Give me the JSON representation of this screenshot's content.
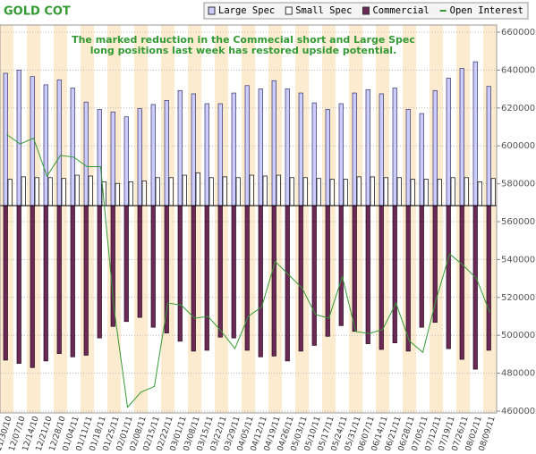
{
  "chart_data": {
    "type": "bar",
    "title": "GOLD COT",
    "annotation": [
      "The marked reduction in the Commecial short and Large Spec",
      "long positions last week has restored upside potential."
    ],
    "categories": [
      "11/30/10",
      "12/07/10",
      "12/14/10",
      "12/21/10",
      "12/28/10",
      "01/04/11",
      "01/11/11",
      "01/18/11",
      "01/25/11",
      "02/01/11",
      "02/08/11",
      "02/15/11",
      "02/22/11",
      "03/01/11",
      "03/08/11",
      "03/15/11",
      "03/22/11",
      "03/29/11",
      "04/05/11",
      "04/12/11",
      "04/19/11",
      "04/26/11",
      "05/03/11",
      "05/10/11",
      "05/17/11",
      "05/24/11",
      "05/31/11",
      "06/07/11",
      "06/14/11",
      "06/21/11",
      "06/28/11",
      "07/05/11",
      "07/12/11",
      "07/19/11",
      "07/26/11",
      "08/02/11",
      "08/09/11"
    ],
    "ylim": [
      -250000,
      211000
    ],
    "y2lim": [
      460000,
      660000
    ],
    "y2ticks": [
      460000,
      480000,
      500000,
      520000,
      540000,
      560000,
      580000,
      600000,
      620000,
      640000,
      660000
    ],
    "grid": true,
    "series": [
      {
        "name": "Large Spec",
        "type": "bar",
        "color": "#ccccff",
        "values": [
          161000,
          165000,
          157000,
          147000,
          153000,
          143000,
          126000,
          117000,
          114000,
          108000,
          118000,
          123000,
          128000,
          140000,
          136000,
          124000,
          124000,
          137000,
          146000,
          142000,
          152000,
          142000,
          137000,
          125000,
          117000,
          124000,
          137000,
          141000,
          136000,
          143000,
          117000,
          112000,
          140000,
          155000,
          167000,
          175000,
          145000
        ]
      },
      {
        "name": "Small Spec",
        "type": "bar",
        "color": "#ffffff",
        "values": [
          32000,
          35000,
          34000,
          34000,
          33000,
          37000,
          36000,
          29000,
          27000,
          29000,
          30000,
          34000,
          34000,
          37000,
          40000,
          34000,
          35000,
          34000,
          37000,
          36000,
          37000,
          34000,
          34000,
          33000,
          32000,
          32000,
          35000,
          35000,
          34000,
          34000,
          32000,
          32000,
          32000,
          34000,
          34000,
          29000,
          33000
        ]
      },
      {
        "name": "Commercial",
        "type": "bar",
        "color": "#6b2a56",
        "values": [
          -188000,
          -192000,
          -197000,
          -189000,
          -180000,
          -184000,
          -182000,
          -161000,
          -147000,
          -141000,
          -136000,
          -148000,
          -155000,
          -165000,
          -177000,
          -176000,
          -160000,
          -161000,
          -176000,
          -184000,
          -183000,
          -189000,
          -177000,
          -170000,
          -159000,
          -146000,
          -153000,
          -168000,
          -175000,
          -167000,
          -177000,
          -148000,
          -142000,
          -174000,
          -187000,
          -199000,
          -176000
        ]
      },
      {
        "name": "Open Interest",
        "type": "line",
        "axis": "y2",
        "color": "#339933",
        "values": [
          606000,
          601000,
          604000,
          584000,
          595000,
          594000,
          589000,
          589000,
          514000,
          462000,
          470000,
          473000,
          517000,
          516000,
          509000,
          510000,
          502000,
          493000,
          510000,
          515000,
          539000,
          532000,
          525000,
          511000,
          509000,
          531000,
          502000,
          501000,
          503000,
          517000,
          497000,
          491000,
          519000,
          543000,
          537000,
          530000,
          512000
        ]
      }
    ]
  }
}
